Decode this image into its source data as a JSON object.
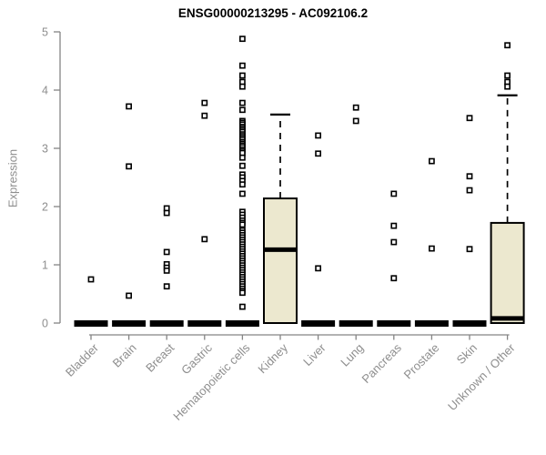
{
  "chart_data": {
    "type": "boxplot",
    "title": "ENSG00000213295 - AC092106.2",
    "ylabel": "Expression",
    "xlabel": "",
    "ylim": [
      0,
      5
    ],
    "yticks": [
      "0",
      "1",
      "2",
      "3",
      "4",
      "5"
    ],
    "grid": false,
    "legend": "none",
    "colors": {
      "box_fill": "#ECE8CF",
      "box_stroke": "#000000",
      "axis_line": "#848484",
      "axis_text": "#8e8e8e",
      "outlier": "#000000"
    },
    "categories": [
      {
        "label": "Bladder",
        "box": {
          "q1": 0,
          "median": 0,
          "q3": 0,
          "whisker_low": 0,
          "whisker_high": 0
        },
        "outliers": [
          0.75
        ]
      },
      {
        "label": "Brain",
        "box": {
          "q1": 0,
          "median": 0,
          "q3": 0,
          "whisker_low": 0,
          "whisker_high": 0
        },
        "outliers": [
          3.72,
          2.69,
          0.47
        ]
      },
      {
        "label": "Breast",
        "box": {
          "q1": 0,
          "median": 0,
          "q3": 0,
          "whisker_low": 0,
          "whisker_high": 0
        },
        "outliers": [
          1.97,
          1.89,
          1.22,
          1.01,
          0.95,
          0.9,
          0.63
        ]
      },
      {
        "label": "Gastric",
        "box": {
          "q1": 0,
          "median": 0,
          "q3": 0,
          "whisker_low": 0,
          "whisker_high": 0
        },
        "outliers": [
          3.78,
          3.56,
          1.44
        ]
      },
      {
        "label": "Hematopoietic cells",
        "box": {
          "q1": 0,
          "median": 0,
          "q3": 0,
          "whisker_low": 0,
          "whisker_high": 0
        },
        "outliers": [
          4.88,
          4.42,
          4.25,
          4.14,
          4.06,
          3.78,
          3.66,
          3.47,
          3.44,
          3.41,
          3.37,
          3.34,
          3.31,
          3.28,
          3.24,
          3.21,
          3.18,
          3.15,
          3.11,
          3.08,
          3.05,
          3.02,
          2.98,
          2.95,
          2.92,
          2.84,
          2.7,
          2.55,
          2.5,
          2.44,
          2.38,
          2.22,
          1.91,
          1.86,
          1.81,
          1.76,
          1.72,
          1.69,
          1.59,
          1.55,
          1.51,
          1.47,
          1.43,
          1.39,
          1.35,
          1.31,
          1.27,
          1.23,
          1.19,
          1.15,
          1.11,
          1.07,
          1.03,
          0.99,
          0.95,
          0.91,
          0.87,
          0.83,
          0.79,
          0.75,
          0.71,
          0.67,
          0.63,
          0.59,
          0.55,
          0.52,
          0.28
        ]
      },
      {
        "label": "Kidney",
        "box": {
          "q1": 0,
          "median": 1.26,
          "q3": 2.14,
          "whisker_low": 0,
          "whisker_high": 3.58
        },
        "outliers": []
      },
      {
        "label": "Liver",
        "box": {
          "q1": 0,
          "median": 0,
          "q3": 0,
          "whisker_low": 0,
          "whisker_high": 0
        },
        "outliers": [
          3.22,
          2.91,
          0.94
        ]
      },
      {
        "label": "Lung",
        "box": {
          "q1": 0,
          "median": 0,
          "q3": 0,
          "whisker_low": 0,
          "whisker_high": 0
        },
        "outliers": [
          3.7,
          3.47
        ]
      },
      {
        "label": "Pancreas",
        "box": {
          "q1": 0,
          "median": 0,
          "q3": 0,
          "whisker_low": 0,
          "whisker_high": 0
        },
        "outliers": [
          2.22,
          1.67,
          1.39,
          0.77
        ]
      },
      {
        "label": "Prostate",
        "box": {
          "q1": 0,
          "median": 0,
          "q3": 0,
          "whisker_low": 0,
          "whisker_high": 0
        },
        "outliers": [
          2.78,
          1.28
        ]
      },
      {
        "label": "Skin",
        "box": {
          "q1": 0,
          "median": 0,
          "q3": 0,
          "whisker_low": 0,
          "whisker_high": 0
        },
        "outliers": [
          3.52,
          2.52,
          2.28,
          1.27
        ]
      },
      {
        "label": "Unknown / Other",
        "box": {
          "q1": 0,
          "median": 0.08,
          "q3": 1.72,
          "whisker_low": 0,
          "whisker_high": 3.91
        },
        "outliers": [
          4.77,
          4.25,
          4.14,
          4.06
        ]
      }
    ]
  }
}
